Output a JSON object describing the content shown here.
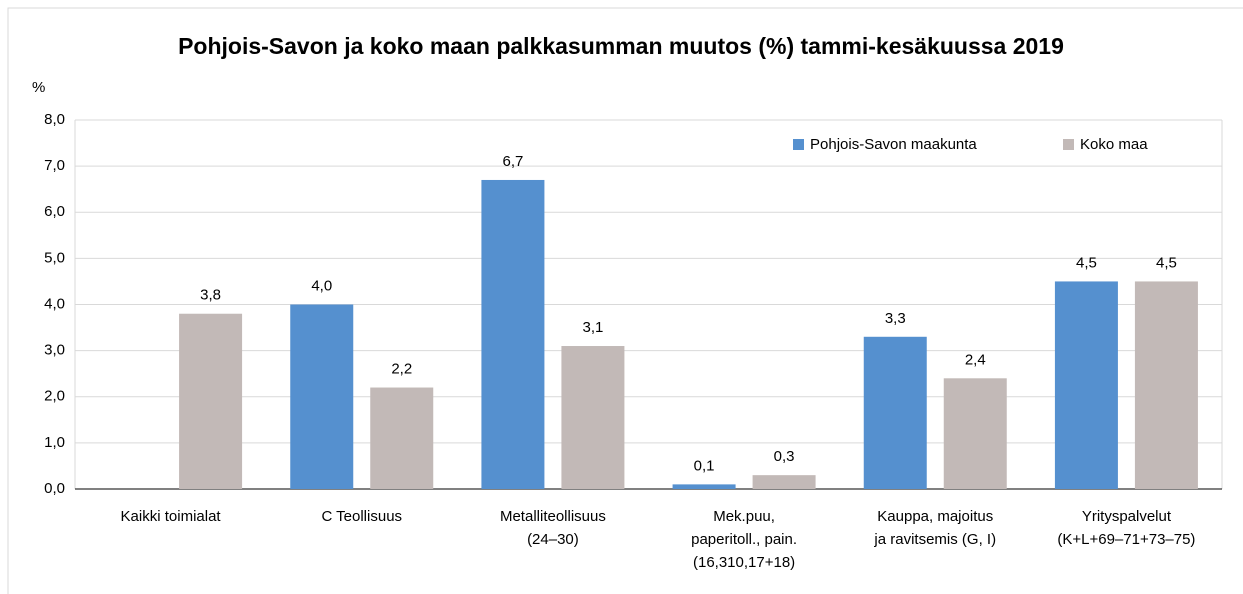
{
  "chart_data": {
    "type": "bar",
    "title": "Pohjois-Savon ja koko maan palkkasumman muutos (%) tammi-kesäkuussa 2019",
    "y_label": "%",
    "categories": [
      [
        "Kaikki toimialat"
      ],
      [
        "C Teollisuus"
      ],
      [
        "Metalliteollisuus",
        "(24–30)"
      ],
      [
        "Mek.puu,",
        "paperitoll., pain.",
        "(16,310,17+18)"
      ],
      [
        "Kauppa, majoitus",
        "ja ravitsemis (G, I)"
      ],
      [
        "Yrityspalvelut",
        "(K+L+69–71+73–75)"
      ]
    ],
    "series": [
      {
        "name": "Pohjois-Savon maakunta",
        "color": "#5590cf",
        "values": [
          null,
          4.0,
          6.7,
          0.1,
          3.3,
          4.5
        ],
        "value_labels": [
          null,
          "4,0",
          "6,7",
          "0,1",
          "3,3",
          "4,5"
        ]
      },
      {
        "name": "Koko maa",
        "color": "#c2b9b7",
        "values": [
          3.8,
          2.2,
          3.1,
          0.3,
          2.4,
          4.5
        ],
        "value_labels": [
          "3,8",
          "2,2",
          "3,1",
          "0,3",
          "2,4",
          "4,5"
        ]
      }
    ],
    "ylim": [
      0,
      8
    ],
    "yticks": [
      {
        "value": 0,
        "label": "0,0"
      },
      {
        "value": 1,
        "label": "1,0"
      },
      {
        "value": 2,
        "label": "2,0"
      },
      {
        "value": 3,
        "label": "3,0"
      },
      {
        "value": 4,
        "label": "4,0"
      },
      {
        "value": 5,
        "label": "5,0"
      },
      {
        "value": 6,
        "label": "6,0"
      },
      {
        "value": 7,
        "label": "7,0"
      },
      {
        "value": 8,
        "label": "8,0"
      }
    ],
    "grid": true,
    "legend": "top-right"
  }
}
